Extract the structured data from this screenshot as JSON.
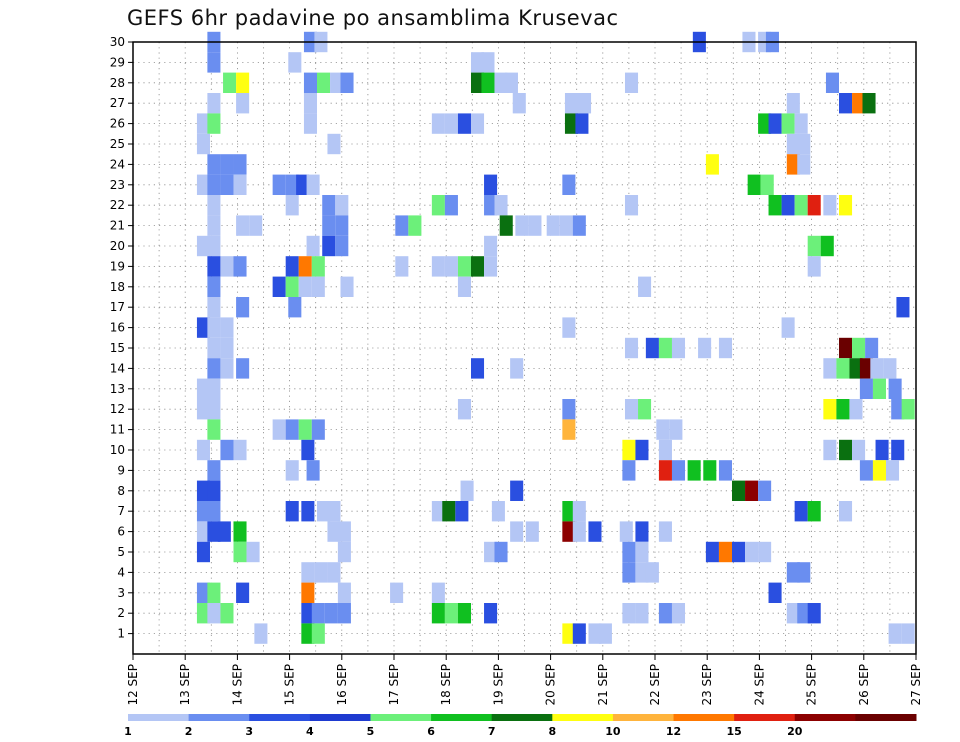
{
  "chart_data": {
    "type": "heatmap",
    "title": "GEFS 6hr padavine po ansamblima Krusevac",
    "x_tick_labels": [
      "12 SEP",
      "13 SEP",
      "14 SEP",
      "15 SEP",
      "16 SEP",
      "17 SEP",
      "18 SEP",
      "19 SEP",
      "20 SEP",
      "21 SEP",
      "22 SEP",
      "23 SEP",
      "24 SEP",
      "25 SEP",
      "26 SEP",
      "27 SEP"
    ],
    "x_range_days": [
      12,
      27
    ],
    "y_tick_labels": [
      "1",
      "2",
      "3",
      "4",
      "5",
      "6",
      "7",
      "8",
      "9",
      "10",
      "11",
      "12",
      "13",
      "14",
      "15",
      "16",
      "17",
      "18",
      "19",
      "20",
      "21",
      "22",
      "23",
      "24",
      "25",
      "26",
      "27",
      "28",
      "29",
      "30"
    ],
    "y_range": [
      0,
      30
    ],
    "grid": "dotted",
    "legend": {
      "placement": "bottom",
      "labels": [
        "1",
        "2",
        "3",
        "4",
        "5",
        "6",
        "7",
        "8",
        "10",
        "12",
        "15",
        "20"
      ],
      "colors": [
        "#b4c6f5",
        "#6a8ef0",
        "#2a4fe0",
        "#1e3ad0",
        "#6cf07a",
        "#10c020",
        "#0a7010",
        "#ffff10",
        "#ffb43c",
        "#ff7800",
        "#e02010",
        "#8c0000",
        "#6a0000"
      ]
    },
    "cells_note": "each cell: [day position, member, color class 1-13]",
    "cells": [
      [
        13.55,
        30,
        2
      ],
      [
        15.4,
        30,
        2
      ],
      [
        15.6,
        30,
        1
      ],
      [
        22.85,
        30,
        3
      ],
      [
        23.8,
        30,
        1
      ],
      [
        24.1,
        30,
        1
      ],
      [
        24.25,
        30,
        2
      ],
      [
        13.55,
        29,
        2
      ],
      [
        15.1,
        29,
        1
      ],
      [
        18.6,
        29,
        1
      ],
      [
        18.8,
        29,
        1
      ],
      [
        13.85,
        28,
        5
      ],
      [
        14.1,
        28,
        8
      ],
      [
        15.4,
        28,
        2
      ],
      [
        15.65,
        28,
        5
      ],
      [
        15.9,
        28,
        1
      ],
      [
        16.1,
        28,
        2
      ],
      [
        18.6,
        28,
        7
      ],
      [
        18.8,
        28,
        6
      ],
      [
        19.05,
        28,
        1
      ],
      [
        19.25,
        28,
        1
      ],
      [
        21.55,
        28,
        1
      ],
      [
        25.4,
        28,
        2
      ],
      [
        13.55,
        27,
        1
      ],
      [
        14.1,
        27,
        1
      ],
      [
        15.4,
        27,
        1
      ],
      [
        19.4,
        27,
        1
      ],
      [
        20.4,
        27,
        1
      ],
      [
        20.65,
        27,
        1
      ],
      [
        24.65,
        27,
        1
      ],
      [
        25.65,
        27,
        3
      ],
      [
        25.9,
        27,
        10
      ],
      [
        26.1,
        27,
        7
      ],
      [
        13.35,
        26,
        1
      ],
      [
        13.55,
        26,
        5
      ],
      [
        15.4,
        26,
        1
      ],
      [
        17.85,
        26,
        1
      ],
      [
        18.1,
        26,
        1
      ],
      [
        18.35,
        26,
        3
      ],
      [
        18.6,
        26,
        1
      ],
      [
        20.4,
        26,
        7
      ],
      [
        20.6,
        26,
        3
      ],
      [
        24.1,
        26,
        6
      ],
      [
        24.3,
        26,
        3
      ],
      [
        24.55,
        26,
        5
      ],
      [
        24.8,
        26,
        1
      ],
      [
        13.35,
        25,
        1
      ],
      [
        15.85,
        25,
        1
      ],
      [
        24.65,
        25,
        1
      ],
      [
        24.85,
        25,
        1
      ],
      [
        13.55,
        24,
        2
      ],
      [
        13.8,
        24,
        2
      ],
      [
        14.05,
        24,
        2
      ],
      [
        23.1,
        24,
        8
      ],
      [
        24.65,
        24,
        10
      ],
      [
        24.85,
        24,
        1
      ],
      [
        13.35,
        23,
        1
      ],
      [
        13.55,
        23,
        2
      ],
      [
        13.8,
        23,
        2
      ],
      [
        14.05,
        23,
        1
      ],
      [
        14.8,
        23,
        2
      ],
      [
        15.05,
        23,
        2
      ],
      [
        15.25,
        23,
        3
      ],
      [
        15.45,
        23,
        1
      ],
      [
        18.85,
        23,
        3
      ],
      [
        20.35,
        23,
        2
      ],
      [
        23.9,
        23,
        6
      ],
      [
        24.15,
        23,
        5
      ],
      [
        13.55,
        22,
        1
      ],
      [
        15.05,
        22,
        1
      ],
      [
        15.75,
        22,
        2
      ],
      [
        16,
        22,
        1
      ],
      [
        17.85,
        22,
        5
      ],
      [
        18.1,
        22,
        2
      ],
      [
        18.85,
        22,
        2
      ],
      [
        19.05,
        22,
        1
      ],
      [
        21.55,
        22,
        1
      ],
      [
        24.3,
        22,
        6
      ],
      [
        24.55,
        22,
        3
      ],
      [
        24.8,
        22,
        5
      ],
      [
        25.05,
        22,
        11
      ],
      [
        25.35,
        22,
        1
      ],
      [
        25.65,
        22,
        8
      ],
      [
        13.55,
        21,
        1
      ],
      [
        14.1,
        21,
        1
      ],
      [
        14.35,
        21,
        1
      ],
      [
        15.75,
        21,
        2
      ],
      [
        16,
        21,
        2
      ],
      [
        17.15,
        21,
        2
      ],
      [
        17.4,
        21,
        5
      ],
      [
        19.15,
        21,
        7
      ],
      [
        19.45,
        21,
        1
      ],
      [
        19.7,
        21,
        1
      ],
      [
        20.05,
        21,
        1
      ],
      [
        20.3,
        21,
        1
      ],
      [
        20.55,
        21,
        2
      ],
      [
        13.35,
        20,
        1
      ],
      [
        13.55,
        20,
        1
      ],
      [
        15.45,
        20,
        1
      ],
      [
        15.75,
        20,
        3
      ],
      [
        16,
        20,
        2
      ],
      [
        18.85,
        20,
        1
      ],
      [
        25.05,
        20,
        5
      ],
      [
        25.3,
        20,
        6
      ],
      [
        13.55,
        19,
        3
      ],
      [
        13.8,
        19,
        1
      ],
      [
        14.05,
        19,
        2
      ],
      [
        15.05,
        19,
        3
      ],
      [
        15.3,
        19,
        10
      ],
      [
        15.55,
        19,
        5
      ],
      [
        17.15,
        19,
        1
      ],
      [
        17.85,
        19,
        1
      ],
      [
        18.1,
        19,
        1
      ],
      [
        18.35,
        19,
        5
      ],
      [
        18.6,
        19,
        7
      ],
      [
        18.85,
        19,
        1
      ],
      [
        25.05,
        19,
        1
      ],
      [
        13.55,
        18,
        2
      ],
      [
        14.8,
        18,
        3
      ],
      [
        15.05,
        18,
        5
      ],
      [
        15.3,
        18,
        1
      ],
      [
        15.55,
        18,
        1
      ],
      [
        16.1,
        18,
        1
      ],
      [
        18.35,
        18,
        1
      ],
      [
        21.8,
        18,
        1
      ],
      [
        13.55,
        17,
        1
      ],
      [
        14.1,
        17,
        2
      ],
      [
        15.1,
        17,
        2
      ],
      [
        26.75,
        17,
        3
      ],
      [
        13.35,
        16,
        3
      ],
      [
        13.55,
        16,
        1
      ],
      [
        13.8,
        16,
        1
      ],
      [
        20.35,
        16,
        1
      ],
      [
        24.55,
        16,
        1
      ],
      [
        13.55,
        15,
        1
      ],
      [
        13.8,
        15,
        1
      ],
      [
        21.55,
        15,
        1
      ],
      [
        21.95,
        15,
        3
      ],
      [
        22.2,
        15,
        5
      ],
      [
        22.45,
        15,
        1
      ],
      [
        22.95,
        15,
        1
      ],
      [
        23.35,
        15,
        1
      ],
      [
        25.65,
        15,
        13
      ],
      [
        25.9,
        15,
        5
      ],
      [
        26.15,
        15,
        2
      ],
      [
        13.55,
        14,
        2
      ],
      [
        13.8,
        14,
        1
      ],
      [
        14.1,
        14,
        2
      ],
      [
        18.6,
        14,
        3
      ],
      [
        19.35,
        14,
        1
      ],
      [
        25.35,
        14,
        1
      ],
      [
        25.6,
        14,
        5
      ],
      [
        25.85,
        14,
        7
      ],
      [
        26.05,
        14,
        13
      ],
      [
        26.25,
        14,
        1
      ],
      [
        26.5,
        14,
        1
      ],
      [
        13.35,
        13,
        1
      ],
      [
        13.55,
        13,
        1
      ],
      [
        26.05,
        13,
        2
      ],
      [
        26.3,
        13,
        5
      ],
      [
        26.6,
        13,
        2
      ],
      [
        13.35,
        12,
        1
      ],
      [
        13.55,
        12,
        1
      ],
      [
        18.35,
        12,
        1
      ],
      [
        20.35,
        12,
        2
      ],
      [
        21.55,
        12,
        1
      ],
      [
        21.8,
        12,
        5
      ],
      [
        25.35,
        12,
        8
      ],
      [
        25.6,
        12,
        6
      ],
      [
        25.85,
        12,
        1
      ],
      [
        26.65,
        12,
        2
      ],
      [
        26.85,
        12,
        5
      ],
      [
        13.55,
        11,
        5
      ],
      [
        14.8,
        11,
        1
      ],
      [
        15.05,
        11,
        2
      ],
      [
        15.3,
        11,
        5
      ],
      [
        15.55,
        11,
        2
      ],
      [
        20.35,
        11,
        9
      ],
      [
        22.15,
        11,
        1
      ],
      [
        22.4,
        11,
        1
      ],
      [
        13.35,
        10,
        1
      ],
      [
        13.8,
        10,
        2
      ],
      [
        14.05,
        10,
        1
      ],
      [
        15.35,
        10,
        3
      ],
      [
        21.5,
        10,
        8
      ],
      [
        21.75,
        10,
        3
      ],
      [
        22.2,
        10,
        1
      ],
      [
        25.35,
        10,
        1
      ],
      [
        25.65,
        10,
        7
      ],
      [
        25.9,
        10,
        1
      ],
      [
        26.35,
        10,
        3
      ],
      [
        26.65,
        10,
        3
      ],
      [
        13.55,
        9,
        2
      ],
      [
        15.05,
        9,
        1
      ],
      [
        15.45,
        9,
        2
      ],
      [
        21.5,
        9,
        2
      ],
      [
        22.2,
        9,
        11
      ],
      [
        22.45,
        9,
        2
      ],
      [
        22.75,
        9,
        6
      ],
      [
        23.05,
        9,
        6
      ],
      [
        23.35,
        9,
        2
      ],
      [
        26.05,
        9,
        2
      ],
      [
        26.3,
        9,
        8
      ],
      [
        26.55,
        9,
        1
      ],
      [
        13.35,
        8,
        3
      ],
      [
        13.55,
        8,
        3
      ],
      [
        18.4,
        8,
        1
      ],
      [
        19.35,
        8,
        3
      ],
      [
        23.6,
        8,
        7
      ],
      [
        23.85,
        8,
        12
      ],
      [
        24.1,
        8,
        2
      ],
      [
        13.35,
        7,
        2
      ],
      [
        13.55,
        7,
        2
      ],
      [
        15.05,
        7,
        3
      ],
      [
        15.35,
        7,
        3
      ],
      [
        15.65,
        7,
        1
      ],
      [
        15.85,
        7,
        1
      ],
      [
        17.85,
        7,
        1
      ],
      [
        18.05,
        7,
        7
      ],
      [
        18.3,
        7,
        3
      ],
      [
        19,
        7,
        1
      ],
      [
        20.35,
        7,
        6
      ],
      [
        20.55,
        7,
        1
      ],
      [
        24.8,
        7,
        3
      ],
      [
        25.05,
        7,
        6
      ],
      [
        25.65,
        7,
        1
      ],
      [
        13.35,
        6,
        1
      ],
      [
        13.55,
        6,
        3
      ],
      [
        13.75,
        6,
        3
      ],
      [
        14.05,
        6,
        6
      ],
      [
        15.85,
        6,
        1
      ],
      [
        16.05,
        6,
        1
      ],
      [
        19.35,
        6,
        1
      ],
      [
        19.65,
        6,
        1
      ],
      [
        20.35,
        6,
        12
      ],
      [
        20.55,
        6,
        1
      ],
      [
        20.85,
        6,
        3
      ],
      [
        21.45,
        6,
        1
      ],
      [
        21.75,
        6,
        3
      ],
      [
        22.2,
        6,
        1
      ],
      [
        13.35,
        5,
        3
      ],
      [
        14.05,
        5,
        5
      ],
      [
        14.3,
        5,
        1
      ],
      [
        16.05,
        5,
        1
      ],
      [
        18.85,
        5,
        1
      ],
      [
        19.05,
        5,
        2
      ],
      [
        21.5,
        5,
        2
      ],
      [
        21.75,
        5,
        1
      ],
      [
        23.1,
        5,
        3
      ],
      [
        23.35,
        5,
        10
      ],
      [
        23.6,
        5,
        3
      ],
      [
        23.85,
        5,
        1
      ],
      [
        24.1,
        5,
        1
      ],
      [
        15.35,
        4,
        1
      ],
      [
        15.6,
        4,
        1
      ],
      [
        15.85,
        4,
        1
      ],
      [
        21.5,
        4,
        2
      ],
      [
        21.75,
        4,
        1
      ],
      [
        21.95,
        4,
        1
      ],
      [
        24.65,
        4,
        2
      ],
      [
        24.85,
        4,
        2
      ],
      [
        13.35,
        3,
        2
      ],
      [
        13.55,
        3,
        5
      ],
      [
        14.1,
        3,
        3
      ],
      [
        15.35,
        3,
        10
      ],
      [
        16.05,
        3,
        1
      ],
      [
        17.05,
        3,
        1
      ],
      [
        17.85,
        3,
        1
      ],
      [
        24.3,
        3,
        3
      ],
      [
        13.35,
        2,
        5
      ],
      [
        13.55,
        2,
        1
      ],
      [
        13.8,
        2,
        5
      ],
      [
        15.35,
        2,
        3
      ],
      [
        15.55,
        2,
        2
      ],
      [
        15.8,
        2,
        2
      ],
      [
        16.05,
        2,
        2
      ],
      [
        17.85,
        2,
        6
      ],
      [
        18.1,
        2,
        5
      ],
      [
        18.35,
        2,
        6
      ],
      [
        18.85,
        2,
        3
      ],
      [
        21.5,
        2,
        1
      ],
      [
        21.75,
        2,
        1
      ],
      [
        22.2,
        2,
        2
      ],
      [
        22.45,
        2,
        1
      ],
      [
        24.65,
        2,
        1
      ],
      [
        24.85,
        2,
        2
      ],
      [
        25.05,
        2,
        3
      ],
      [
        14.45,
        1,
        1
      ],
      [
        15.35,
        1,
        6
      ],
      [
        15.55,
        1,
        5
      ],
      [
        20.35,
        1,
        8
      ],
      [
        20.55,
        1,
        3
      ],
      [
        20.85,
        1,
        1
      ],
      [
        21.05,
        1,
        1
      ],
      [
        26.6,
        1,
        1
      ],
      [
        26.85,
        1,
        1
      ]
    ]
  }
}
